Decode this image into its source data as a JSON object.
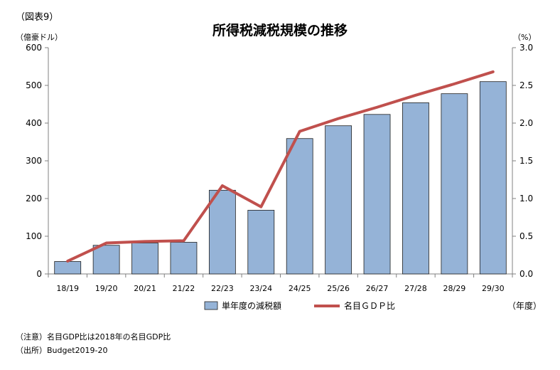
{
  "figure_label": "（図表9）",
  "title": "所得税減税規模の推移",
  "note": "（注意）名目GDP比は2018年の名目GDP比",
  "source": "（出所）Budget2019-20",
  "colors": {
    "bar": "#95B3D7",
    "bar_border": "#1F1F1F",
    "line": "#C0504D",
    "axis": "#808080",
    "grid": "#BFBFBF"
  },
  "chart_data": {
    "type": "bar",
    "categories": [
      "18/19",
      "19/20",
      "20/21",
      "21/22",
      "22/23",
      "23/24",
      "24/25",
      "25/26",
      "26/27",
      "27/28",
      "28/29",
      "29/30"
    ],
    "series": [
      {
        "name": "単年度の減税額",
        "type": "bar",
        "axis": "left",
        "values": [
          33,
          76,
          82,
          84,
          222,
          169,
          359,
          393,
          423,
          454,
          478,
          510
        ]
      },
      {
        "name": "名目ＧＤＰ比",
        "type": "line",
        "axis": "right",
        "values": [
          0.17,
          0.41,
          0.43,
          0.44,
          1.17,
          0.89,
          1.89,
          2.06,
          2.21,
          2.37,
          2.52,
          2.68
        ]
      }
    ],
    "y_left": {
      "label": "（億豪ドル）",
      "min": 0,
      "max": 600,
      "ticks": [
        0,
        100,
        200,
        300,
        400,
        500,
        600
      ]
    },
    "y_right": {
      "label": "（%）",
      "min": 0,
      "max": 3,
      "ticks": [
        "0.0",
        "0.5",
        "1.0",
        "1.5",
        "2.0",
        "2.5",
        "3.0"
      ]
    },
    "x_unit_label": "（年度）",
    "grid": false,
    "legend_position": "bottom"
  }
}
